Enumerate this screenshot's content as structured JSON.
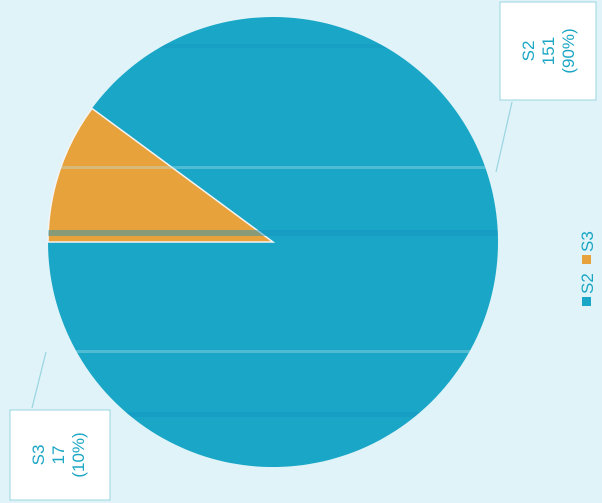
{
  "chart_data": {
    "type": "pie",
    "slices": [
      {
        "label": "S2",
        "value": 151,
        "percent_label": "(90%)",
        "value_label": "151",
        "color": "#1aa6c6"
      },
      {
        "label": "S3",
        "value": 17,
        "percent_label": "(10%)",
        "value_label": "17",
        "color": "#e8a23c"
      }
    ],
    "legend": {
      "placement": "right",
      "entries": [
        "S2",
        "S3"
      ]
    },
    "orientation": "rotated-90-clockwise"
  }
}
